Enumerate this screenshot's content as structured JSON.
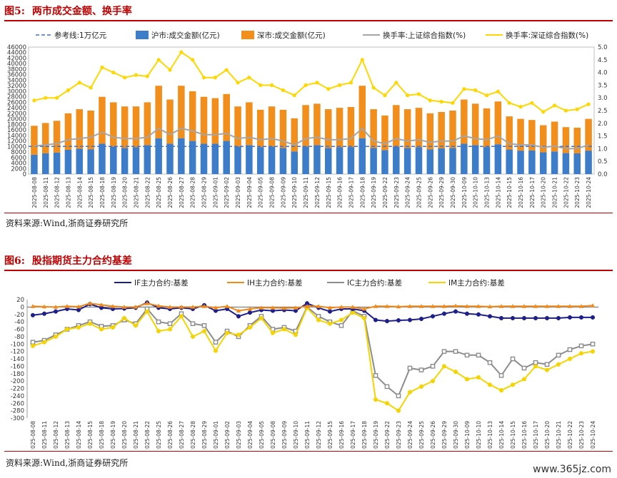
{
  "fig5": {
    "label": "图5:",
    "title": "两市成交金额、换手率",
    "source": "资料来源:Wind,浙商证券研究所"
  },
  "fig6": {
    "label": "图6:",
    "title": "股指期货主力合约基差",
    "source": "资料来源:Wind,浙商证券研究所"
  },
  "watermark": "www.365jz.com",
  "dates": [
    "2025-08-08",
    "2025-08-11",
    "2025-08-12",
    "2025-08-13",
    "2025-08-14",
    "2025-08-15",
    "2025-08-18",
    "2025-08-19",
    "2025-08-20",
    "2025-08-21",
    "2025-08-22",
    "2025-08-25",
    "2025-08-26",
    "2025-08-27",
    "2025-08-28",
    "2025-08-29",
    "2025-09-01",
    "2025-09-02",
    "2025-09-03",
    "2025-09-04",
    "2025-09-05",
    "2025-09-08",
    "2025-09-09",
    "2025-09-10",
    "2025-09-11",
    "2025-09-12",
    "2025-09-15",
    "2025-09-16",
    "2025-09-17",
    "2025-09-18",
    "2025-09-19",
    "2025-09-22",
    "2025-09-23",
    "2025-09-24",
    "2025-09-25",
    "2025-09-26",
    "2025-09-29",
    "2025-09-30",
    "2025-10-09",
    "2025-10-10",
    "2025-10-13",
    "2025-10-14",
    "2025-10-15",
    "2025-10-16",
    "2025-10-17",
    "2025-10-20",
    "2025-10-21",
    "2025-10-22",
    "2025-10-23",
    "2025-10-24"
  ],
  "chart_data": [
    {
      "type": "bar",
      "title": "两市成交金额、换手率",
      "legend": [
        "参考线:1万亿元",
        "沪市:成交金额(亿元)",
        "深市:成交金额(亿元)",
        "换手率:上证综合指数(%)",
        "换手率:深证综合指数(%)"
      ],
      "ylim_left": [
        0,
        46000
      ],
      "ylim_right": [
        0,
        5.0
      ],
      "yticks_left": [
        "0",
        "2000",
        "4000",
        "6000",
        "8000",
        "10000",
        "12000",
        "14000",
        "16000",
        "18000",
        "20000",
        "22000",
        "24000",
        "26000",
        "28000",
        "30000",
        "32000",
        "34000",
        "36000",
        "38000",
        "40000",
        "42000",
        "44000",
        "46000"
      ],
      "yticks_right": [
        "0.0",
        "0.5",
        "1.0",
        "1.5",
        "2.0",
        "2.5",
        "3.0",
        "3.5",
        "4.0",
        "4.5",
        "5.0"
      ],
      "reference_line": 10000,
      "series": [
        {
          "name": "沪市:成交金额(亿元)",
          "color": "#3d7cc9",
          "stack": true,
          "values": [
            7000,
            7500,
            7800,
            8800,
            9200,
            9000,
            11000,
            10000,
            9500,
            9700,
            10500,
            13000,
            11000,
            13000,
            12000,
            11000,
            11000,
            12000,
            10000,
            10500,
            9800,
            10000,
            9500,
            8200,
            10000,
            10500,
            9500,
            9700,
            9800,
            13000,
            9500,
            8700,
            10000,
            9500,
            9700,
            9000,
            9300,
            9500,
            11000,
            10500,
            9800,
            10800,
            8900,
            8500,
            8600,
            7900,
            8200,
            7600,
            7500,
            8500
          ]
        },
        {
          "name": "深市:成交金额(亿元)",
          "color": "#f28e1c",
          "stack": true,
          "values": [
            10500,
            11000,
            11500,
            13200,
            14300,
            14000,
            17000,
            16000,
            15000,
            14800,
            15500,
            19000,
            16000,
            19000,
            18000,
            17000,
            16500,
            17000,
            14500,
            15500,
            13500,
            14500,
            13800,
            12000,
            15000,
            15000,
            14000,
            14300,
            14500,
            19000,
            14000,
            12500,
            15000,
            14000,
            14300,
            13000,
            13200,
            13500,
            16000,
            15000,
            14000,
            15500,
            12000,
            11500,
            11000,
            9800,
            10800,
            9400,
            9300,
            11500
          ]
        },
        {
          "name": "换手率:上证综合指数(%)",
          "color": "#a6a6a6",
          "axis": "right",
          "values": [
            1.1,
            1.15,
            1.2,
            1.35,
            1.4,
            1.45,
            1.65,
            1.45,
            1.4,
            1.4,
            1.45,
            1.8,
            1.55,
            1.8,
            1.7,
            1.55,
            1.55,
            1.6,
            1.4,
            1.45,
            1.35,
            1.4,
            1.3,
            1.15,
            1.4,
            1.45,
            1.35,
            1.35,
            1.4,
            1.8,
            1.3,
            1.2,
            1.4,
            1.3,
            1.35,
            1.25,
            1.3,
            1.3,
            1.5,
            1.4,
            1.35,
            1.5,
            1.2,
            1.15,
            1.15,
            1.05,
            1.1,
            1.0,
            1.0,
            1.15
          ]
        },
        {
          "name": "换手率:深证综合指数(%)",
          "color": "#ffd700",
          "axis": "right",
          "values": [
            2.9,
            3.0,
            3.0,
            3.3,
            3.6,
            3.4,
            4.2,
            4.0,
            3.8,
            3.9,
            3.85,
            4.5,
            4.1,
            4.8,
            4.5,
            3.8,
            3.8,
            4.1,
            3.6,
            3.8,
            3.5,
            3.5,
            3.3,
            3.1,
            3.5,
            3.6,
            3.35,
            3.5,
            3.6,
            4.5,
            3.4,
            3.1,
            3.6,
            3.1,
            3.15,
            2.9,
            2.85,
            2.8,
            3.35,
            3.3,
            3.1,
            3.25,
            2.8,
            2.65,
            2.8,
            2.45,
            2.7,
            2.5,
            2.55,
            2.75
          ]
        }
      ]
    },
    {
      "type": "line",
      "title": "股指期货主力合约基差",
      "legend": [
        "IF主力合约:基差",
        "IH主力合约:基差",
        "IC主力合约:基差",
        "IM主力合约:基差"
      ],
      "ylim": [
        -300,
        20
      ],
      "yticks": [
        "20",
        "0",
        "-20",
        "-40",
        "-60",
        "-80",
        "-100",
        "-120",
        "-140",
        "-160",
        "-180",
        "-200",
        "-220",
        "-240",
        "-260",
        "-280",
        "-300"
      ],
      "series": [
        {
          "name": "IF主力合约:基差",
          "color": "#1f1f8c",
          "marker": "circle",
          "values": [
            -22,
            -18,
            -12,
            -5,
            -8,
            8,
            -2,
            -5,
            -4,
            -2,
            12,
            -2,
            -5,
            -2,
            -5,
            5,
            -10,
            -5,
            -25,
            -15,
            -8,
            -10,
            -8,
            -10,
            10,
            -2,
            -12,
            -5,
            -5,
            -10,
            -35,
            -38,
            -36,
            -35,
            -32,
            -25,
            -18,
            -12,
            -18,
            -20,
            -25,
            -30,
            -30,
            -30,
            -30,
            -30,
            -30,
            -28,
            -28,
            -28
          ]
        },
        {
          "name": "IH主力合约:基差",
          "color": "#f08a1c",
          "marker": "triangle",
          "values": [
            2,
            1,
            0,
            2,
            1,
            10,
            6,
            2,
            0,
            0,
            10,
            3,
            0,
            0,
            0,
            2,
            -2,
            2,
            -10,
            -5,
            -2,
            -2,
            -3,
            -2,
            2,
            2,
            -2,
            0,
            0,
            -5,
            2,
            2,
            1,
            2,
            2,
            2,
            2,
            3,
            2,
            2,
            1,
            2,
            2,
            2,
            2,
            2,
            2,
            2,
            2,
            4
          ]
        },
        {
          "name": "IC主力合约:基差",
          "color": "#8c8c8c",
          "marker": "square",
          "values": [
            -95,
            -90,
            -75,
            -60,
            -50,
            -40,
            -52,
            -50,
            -35,
            -45,
            -5,
            -40,
            -45,
            -18,
            -45,
            -50,
            -95,
            -65,
            -80,
            -50,
            -25,
            -60,
            -55,
            -65,
            0,
            -25,
            -40,
            -50,
            -10,
            -25,
            -185,
            -215,
            -240,
            -165,
            -170,
            -160,
            -120,
            -120,
            -130,
            -130,
            -150,
            -185,
            -140,
            -165,
            -150,
            -155,
            -130,
            -115,
            -105,
            -100
          ]
        },
        {
          "name": "IM主力合约:基差",
          "color": "#f5d400",
          "marker": "circle",
          "values": [
            -105,
            -95,
            -80,
            -60,
            -55,
            -45,
            -60,
            -55,
            -30,
            -50,
            -12,
            -65,
            -60,
            -25,
            -80,
            -65,
            -118,
            -70,
            -75,
            -55,
            -30,
            -70,
            -60,
            -75,
            -2,
            -35,
            -45,
            -35,
            -15,
            -30,
            -250,
            -260,
            -280,
            -230,
            -215,
            -200,
            -160,
            -175,
            -195,
            -190,
            -210,
            -225,
            -210,
            -195,
            -160,
            -170,
            -155,
            -140,
            -125,
            -120
          ]
        }
      ]
    }
  ]
}
